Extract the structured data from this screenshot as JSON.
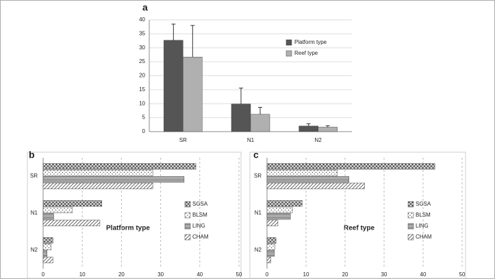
{
  "chart_data": [
    {
      "type": "bar",
      "label": "a",
      "categories": [
        "SR",
        "N1",
        "N2"
      ],
      "series": [
        {
          "name": "Platform type",
          "color": "#555555",
          "values": [
            32.7,
            9.9,
            2.0
          ],
          "errors": [
            5.8,
            5.7,
            0.8
          ]
        },
        {
          "name": "Reef type",
          "color": "#b0b0b0",
          "values": [
            26.7,
            6.2,
            1.6
          ],
          "errors": [
            11.3,
            2.5,
            0.5
          ]
        }
      ],
      "ylim": [
        0,
        40
      ],
      "yticks": [
        0,
        5,
        10,
        15,
        20,
        25,
        30,
        35,
        40
      ],
      "grid": true
    },
    {
      "type": "hbar",
      "label": "b",
      "annotation": "Platform type",
      "categories": [
        "SR",
        "N1",
        "N2"
      ],
      "series": [
        {
          "name": "SGSA",
          "color": "#555555",
          "values": [
            39,
            15,
            2.5
          ]
        },
        {
          "name": "BLSM",
          "color": "#ffffff",
          "values": [
            28,
            7.5,
            2
          ]
        },
        {
          "name": "LING",
          "color": "#aaaaaa",
          "values": [
            36,
            2.7,
            1
          ]
        },
        {
          "name": "CHAM",
          "color": "#ffffff",
          "values": [
            28,
            14.5,
            2.5
          ]
        }
      ],
      "xlim": [
        0,
        50
      ],
      "xticks": [
        0,
        10,
        20,
        30,
        40,
        50
      ],
      "grid": true
    },
    {
      "type": "hbar",
      "label": "c",
      "annotation": "Reef type",
      "categories": [
        "SR",
        "N1",
        "N2"
      ],
      "series": [
        {
          "name": "SGSA",
          "color": "#555555",
          "values": [
            43,
            9,
            2.3
          ]
        },
        {
          "name": "BLSM",
          "color": "#ffffff",
          "values": [
            18,
            6.5,
            2
          ]
        },
        {
          "name": "LING",
          "color": "#aaaaaa",
          "values": [
            21,
            6,
            1.9
          ]
        },
        {
          "name": "CHAM",
          "color": "#ffffff",
          "values": [
            25,
            2.8,
            1
          ]
        }
      ],
      "xlim": [
        0,
        50
      ],
      "xticks": [
        0,
        10,
        20,
        30,
        40,
        50
      ],
      "grid": true
    }
  ]
}
